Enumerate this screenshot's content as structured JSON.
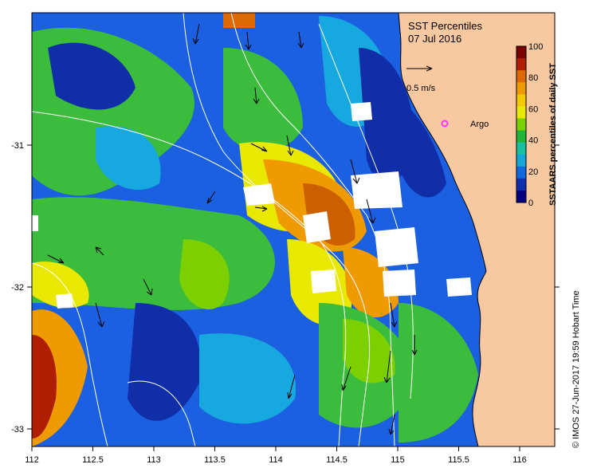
{
  "map": {
    "title": "SST Percentiles",
    "date": "07 Jul 2016",
    "colorbar": {
      "label": "SSTAARS percentiles of daily SST",
      "ticks": [
        "100",
        "80",
        "60",
        "40",
        "20",
        "0"
      ],
      "colors": [
        "#7a0000",
        "#b01e00",
        "#dd6a00",
        "#ee9a00",
        "#f2c900",
        "#e8e800",
        "#7dd000",
        "#1fb43a",
        "#18c0a0",
        "#17a6d8",
        "#1068e0",
        "#1030b0",
        "#000080"
      ]
    },
    "reference_arrow": {
      "label": "0.5 m/s"
    },
    "argo_marker": {
      "label": "Argo",
      "color": "#ff33ff"
    },
    "x_ticks": [
      "112",
      "112.5",
      "113",
      "113.5",
      "114",
      "114.5",
      "115",
      "115.5",
      "116"
    ],
    "y_ticks": [
      "-31",
      "-32",
      "-33"
    ],
    "credit": "© IMOS 27-Jun-2017 19:59 Hobart Time",
    "land_color": "#f8c8a0",
    "palette": {
      "deep_blue": "#102ea8",
      "blue": "#1a60e0",
      "cyan": "#18a8e0",
      "teal": "#18c0a0",
      "green": "#3cbc3c",
      "light_green": "#7dd000",
      "yellow": "#e8e800",
      "orange": "#ee9a00",
      "dark_orange": "#cc6000",
      "red": "#b01e00",
      "dark_red": "#7a0000"
    }
  }
}
